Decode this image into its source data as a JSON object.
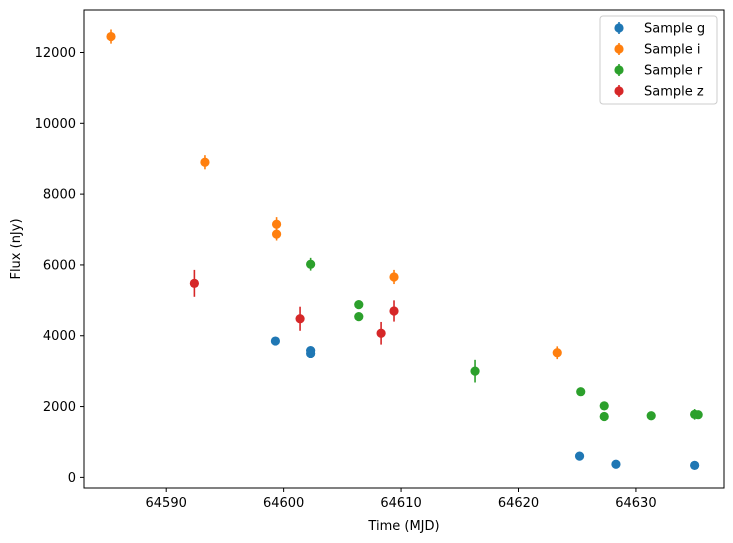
{
  "chart_data": {
    "type": "scatter",
    "xlabel": "Time (MJD)",
    "ylabel": "Flux (nJy)",
    "xlim": [
      64583.0,
      64637.5
    ],
    "ylim": [
      -300,
      13200
    ],
    "xticks": [
      64590,
      64600,
      64610,
      64620,
      64630
    ],
    "yticks": [
      0,
      2000,
      4000,
      6000,
      8000,
      10000,
      12000
    ],
    "grid": false,
    "legend_position": "top-right",
    "series": [
      {
        "name": "Sample g",
        "color": "#1f77b4",
        "points": [
          {
            "x": 64599.3,
            "y": 3850,
            "err": 60
          },
          {
            "x": 64602.3,
            "y": 3580,
            "err": 80
          },
          {
            "x": 64602.3,
            "y": 3500,
            "err": 80
          },
          {
            "x": 64625.2,
            "y": 600,
            "err": 50
          },
          {
            "x": 64628.3,
            "y": 370,
            "err": 50
          },
          {
            "x": 64635.0,
            "y": 340,
            "err": 50
          }
        ]
      },
      {
        "name": "Sample i",
        "color": "#ff7f0e",
        "points": [
          {
            "x": 64585.3,
            "y": 12450,
            "err": 200
          },
          {
            "x": 64593.3,
            "y": 8900,
            "err": 200
          },
          {
            "x": 64599.4,
            "y": 7150,
            "err": 200
          },
          {
            "x": 64599.4,
            "y": 6870,
            "err": 180
          },
          {
            "x": 64609.4,
            "y": 5660,
            "err": 200
          },
          {
            "x": 64623.3,
            "y": 3520,
            "err": 180
          }
        ]
      },
      {
        "name": "Sample r",
        "color": "#2ca02c",
        "points": [
          {
            "x": 64602.3,
            "y": 6020,
            "err": 180
          },
          {
            "x": 64606.4,
            "y": 4880,
            "err": 80
          },
          {
            "x": 64606.4,
            "y": 4540,
            "err": 80
          },
          {
            "x": 64616.3,
            "y": 3000,
            "err": 320
          },
          {
            "x": 64625.3,
            "y": 2420,
            "err": 60
          },
          {
            "x": 64627.3,
            "y": 2020,
            "err": 60
          },
          {
            "x": 64627.3,
            "y": 1720,
            "err": 60
          },
          {
            "x": 64631.3,
            "y": 1740,
            "err": 60
          },
          {
            "x": 64635.0,
            "y": 1780,
            "err": 150
          },
          {
            "x": 64635.3,
            "y": 1770,
            "err": 80
          }
        ]
      },
      {
        "name": "Sample z",
        "color": "#d62728",
        "points": [
          {
            "x": 64592.4,
            "y": 5480,
            "err": 380
          },
          {
            "x": 64601.4,
            "y": 4480,
            "err": 340
          },
          {
            "x": 64608.3,
            "y": 4070,
            "err": 320
          },
          {
            "x": 64609.4,
            "y": 4700,
            "err": 300
          }
        ]
      }
    ]
  }
}
